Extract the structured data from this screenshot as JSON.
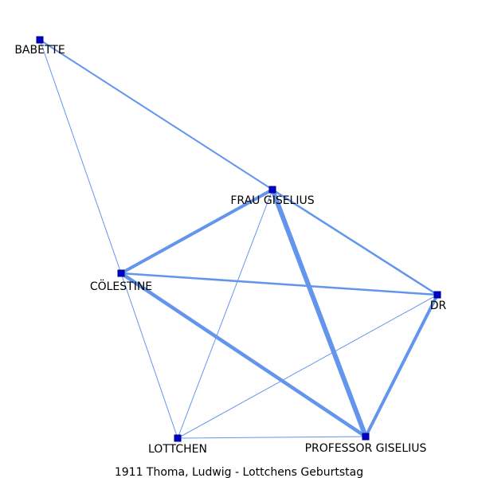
{
  "caption": "1911 Thoma, Ludwig - Lottchens Geburtstag",
  "colors": {
    "edge": "#6495ed",
    "node_fill": "#0000cd",
    "node_stroke": "#000080",
    "label": "#000000",
    "background": "#ffffff"
  },
  "nodes": [
    {
      "id": "babette",
      "label": "BABETTE"
    },
    {
      "id": "frau_giselius",
      "label": "FRAU GISELIUS"
    },
    {
      "id": "coelestine",
      "label": "CÖLESTINE"
    },
    {
      "id": "dr",
      "label": "DR"
    },
    {
      "id": "lottchen",
      "label": "LOTTCHEN"
    },
    {
      "id": "professor_giselius",
      "label": "PROFESSOR GISELIUS"
    }
  ],
  "edges": [
    {
      "source": "babette",
      "target": "frau_giselius",
      "weight": 2
    },
    {
      "source": "babette",
      "target": "coelestine",
      "weight": 1
    },
    {
      "source": "frau_giselius",
      "target": "coelestine",
      "weight": 4
    },
    {
      "source": "frau_giselius",
      "target": "professor_giselius",
      "weight": 6
    },
    {
      "source": "frau_giselius",
      "target": "dr",
      "weight": 2.5
    },
    {
      "source": "frau_giselius",
      "target": "lottchen",
      "weight": 1
    },
    {
      "source": "coelestine",
      "target": "dr",
      "weight": 2.5
    },
    {
      "source": "coelestine",
      "target": "professor_giselius",
      "weight": 4.5
    },
    {
      "source": "coelestine",
      "target": "lottchen",
      "weight": 1
    },
    {
      "source": "dr",
      "target": "professor_giselius",
      "weight": 4
    },
    {
      "source": "dr",
      "target": "lottchen",
      "weight": 1
    },
    {
      "source": "lottchen",
      "target": "professor_giselius",
      "weight": 1
    }
  ]
}
